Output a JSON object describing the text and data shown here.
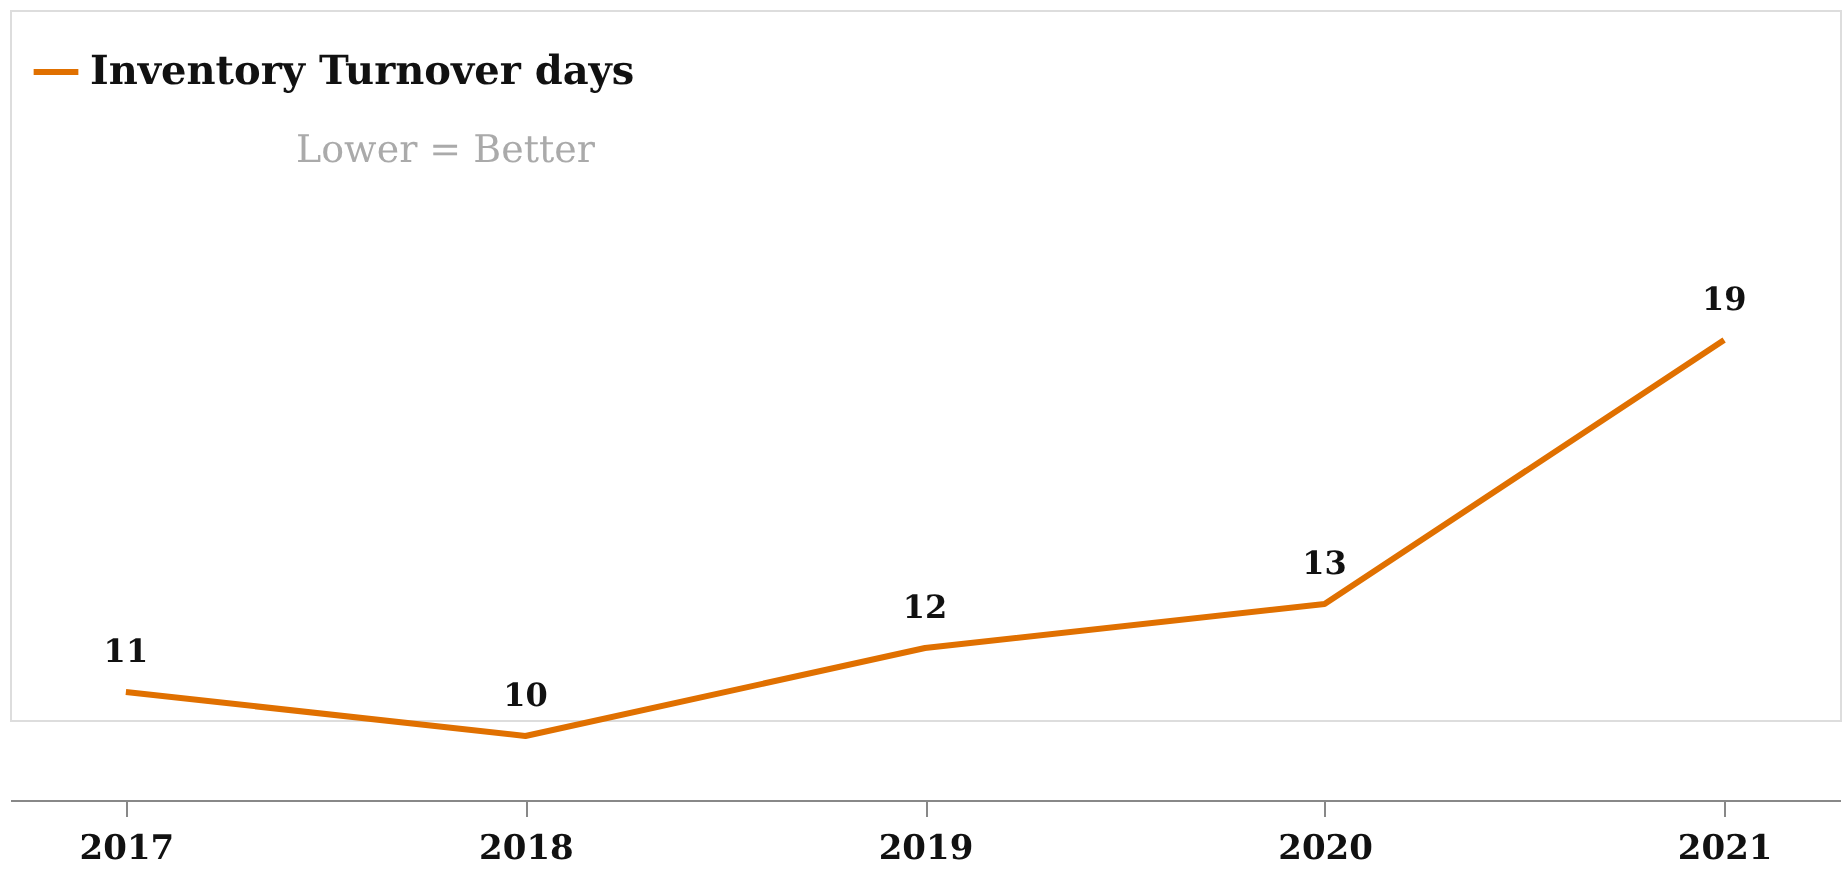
{
  "chart_data": {
    "type": "line",
    "categories": [
      "2017",
      "2018",
      "2019",
      "2020",
      "2021"
    ],
    "series": [
      {
        "name": "Inventory Turnover days",
        "color": "#e07000",
        "values": [
          11,
          10,
          12,
          13,
          19
        ]
      }
    ],
    "annotations": [
      "Lower = Better"
    ],
    "data_labels": true,
    "legend": "top left",
    "grid": false,
    "marker": "none",
    "line_style": "solid"
  }
}
